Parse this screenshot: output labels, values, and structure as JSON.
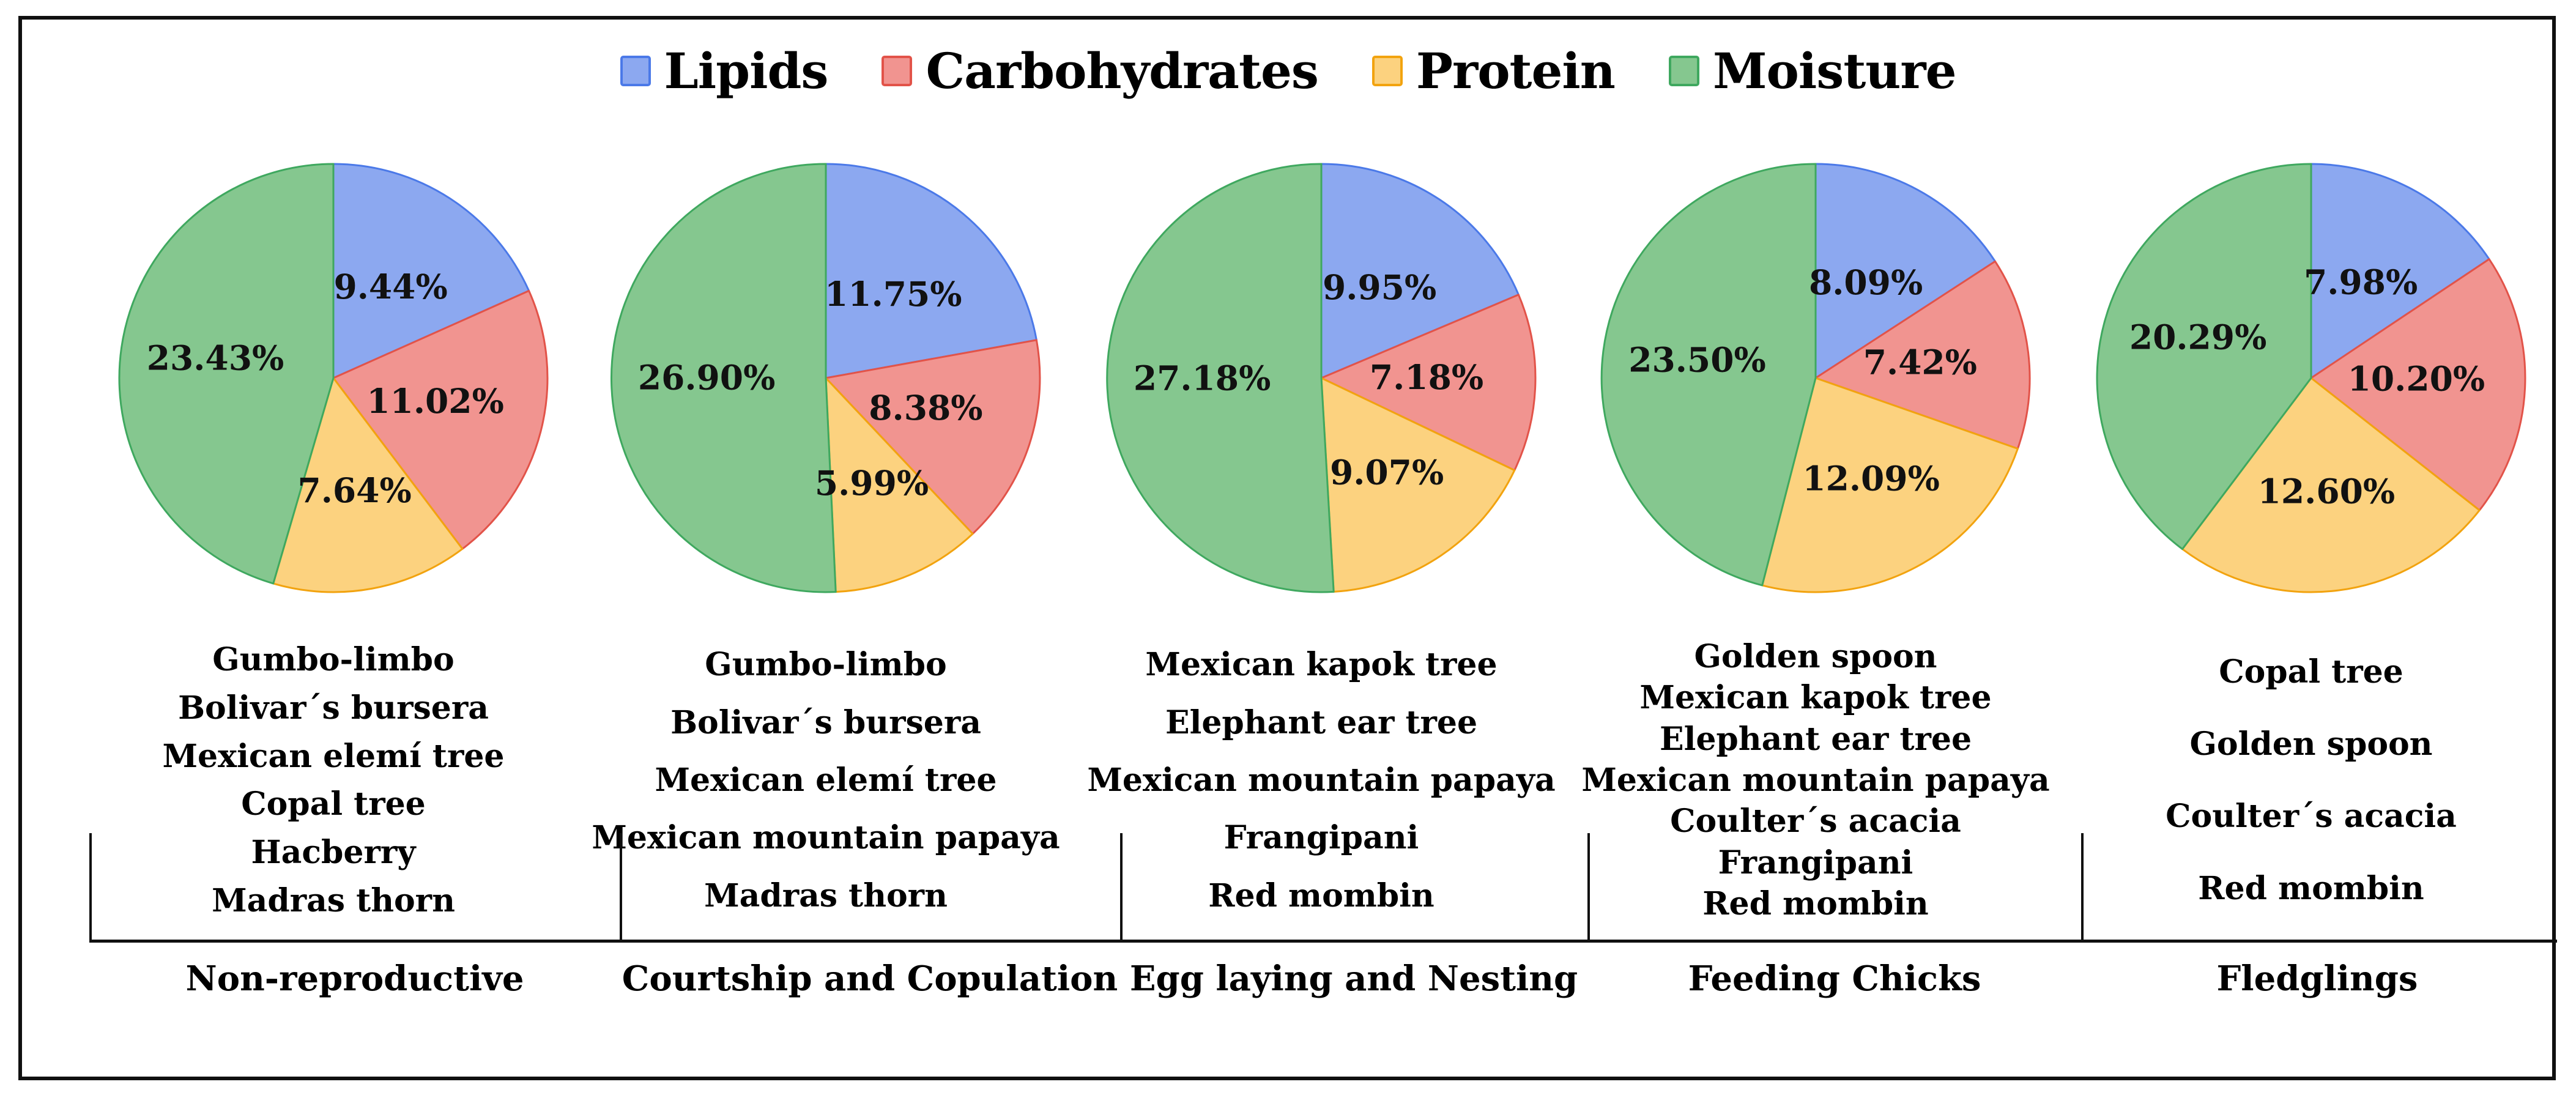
{
  "figure": {
    "background": "#ffffff",
    "border_color": "#101010"
  },
  "legend": {
    "position": "top-center",
    "items": [
      {
        "label": "Lipids",
        "fill": "#8CA8F0",
        "stroke": "#4B79E8"
      },
      {
        "label": "Carbohydrates",
        "fill": "#F19490",
        "stroke": "#E25349"
      },
      {
        "label": "Protein",
        "fill": "#FCD27F",
        "stroke": "#F2A30F"
      },
      {
        "label": "Moisture",
        "fill": "#85C78F",
        "stroke": "#3FA85F"
      }
    ]
  },
  "chart_data": {
    "type": "pie",
    "title": "",
    "legend_position": "top",
    "series_labels": [
      "Lipids",
      "Carbohydrates",
      "Protein",
      "Moisture"
    ],
    "slice_fills": [
      "#8CA8F0",
      "#F19490",
      "#FCD27F",
      "#85C78F"
    ],
    "slice_strokes": [
      "#4B79E8",
      "#E25349",
      "#F2A30F",
      "#3FA85F"
    ],
    "pies": [
      {
        "stage": "Non-reproductive",
        "values": [
          9.44,
          11.02,
          7.64,
          23.43
        ],
        "value_labels": [
          "9.44%",
          "11.02%",
          "7.64%",
          "23.43%"
        ],
        "trees": [
          "Gumbo-limbo",
          "Bolivar´s bursera",
          "Mexican elemí tree",
          "Copal tree",
          "Hacberry",
          "Madras thorn"
        ]
      },
      {
        "stage": "Courtship and Copulation",
        "values": [
          11.75,
          8.38,
          5.99,
          26.9
        ],
        "value_labels": [
          "11.75%",
          "8.38%",
          "5.99%",
          "26.90%"
        ],
        "trees": [
          "Gumbo-limbo",
          "Bolivar´s bursera",
          "Mexican elemí tree",
          "Mexican mountain papaya",
          "Madras thorn"
        ]
      },
      {
        "stage": "Egg laying and Nesting",
        "values": [
          9.95,
          7.18,
          9.07,
          27.18
        ],
        "value_labels": [
          "9.95%",
          "7.18%",
          "9.07%",
          "27.18%"
        ],
        "trees": [
          "Mexican kapok tree",
          "Elephant ear tree",
          "Mexican mountain papaya",
          "Frangipani",
          "Red mombin"
        ]
      },
      {
        "stage": "Feeding Chicks",
        "values": [
          8.09,
          7.42,
          12.09,
          23.5
        ],
        "value_labels": [
          "8.09%",
          "7.42%",
          "12.09%",
          "23.50%"
        ],
        "trees": [
          "Golden spoon",
          "Mexican kapok tree",
          "Elephant ear tree",
          "Mexican mountain papaya",
          "Coulter´s acacia",
          "Frangipani",
          "Red mombin"
        ]
      },
      {
        "stage": "Fledglings",
        "values": [
          7.98,
          10.2,
          12.6,
          20.29
        ],
        "value_labels": [
          "7.98%",
          "10.20%",
          "12.60%",
          "20.29%"
        ],
        "trees": [
          "Copal tree",
          "Golden spoon",
          "Coulter´s acacia",
          "Red mombin"
        ]
      }
    ]
  }
}
